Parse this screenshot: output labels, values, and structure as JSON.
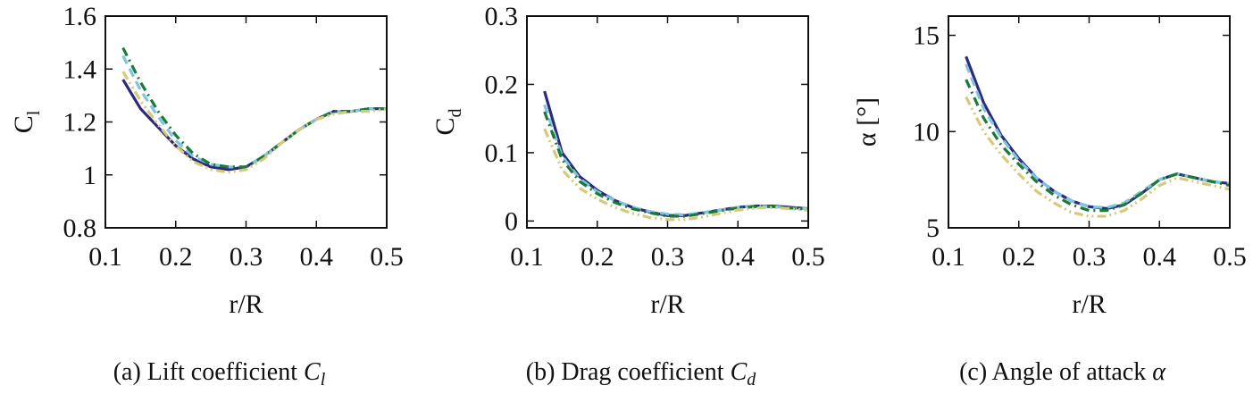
{
  "chart_data": [
    {
      "type": "line",
      "xlabel": "r/R",
      "ylabel": [
        "C",
        "l"
      ],
      "caption": [
        "(a) Lift coefficient ",
        "C",
        "l"
      ],
      "x": [
        0.125,
        0.15,
        0.175,
        0.2,
        0.225,
        0.25,
        0.275,
        0.3,
        0.325,
        0.35,
        0.375,
        0.4,
        0.425,
        0.45,
        0.475,
        0.5
      ],
      "xlim": [
        0.1,
        0.5
      ],
      "xticks": [
        0.1,
        0.2,
        0.3,
        0.4,
        0.5
      ],
      "ylim": [
        0.8,
        1.6
      ],
      "yticks": [
        0.8,
        1,
        1.2,
        1.4,
        1.6
      ],
      "series": [
        {
          "color": "#2d2a7a",
          "linestyle": "solid",
          "values": [
            1.36,
            1.25,
            1.18,
            1.11,
            1.06,
            1.03,
            1.02,
            1.03,
            1.07,
            1.12,
            1.17,
            1.21,
            1.24,
            1.24,
            1.25,
            1.25
          ]
        },
        {
          "color": "#7fc4e0",
          "linestyle": "dashed",
          "values": [
            1.45,
            1.32,
            1.22,
            1.13,
            1.07,
            1.04,
            1.03,
            1.03,
            1.07,
            1.12,
            1.17,
            1.21,
            1.24,
            1.24,
            1.25,
            1.25
          ]
        },
        {
          "color": "#1a7a3a",
          "linestyle": "dashdot",
          "values": [
            1.48,
            1.35,
            1.24,
            1.15,
            1.08,
            1.04,
            1.03,
            1.03,
            1.07,
            1.12,
            1.17,
            1.21,
            1.24,
            1.24,
            1.25,
            1.25
          ]
        },
        {
          "color": "#d6c97a",
          "linestyle": "dashdotdot",
          "values": [
            1.39,
            1.28,
            1.19,
            1.11,
            1.05,
            1.02,
            1.01,
            1.02,
            1.06,
            1.12,
            1.17,
            1.21,
            1.23,
            1.24,
            1.24,
            1.25
          ]
        }
      ]
    },
    {
      "type": "line",
      "xlabel": "r/R",
      "ylabel": [
        "C",
        "d"
      ],
      "caption": [
        "(b) Drag coefficient ",
        "C",
        "d"
      ],
      "x": [
        0.125,
        0.15,
        0.175,
        0.2,
        0.225,
        0.25,
        0.275,
        0.3,
        0.325,
        0.35,
        0.375,
        0.4,
        0.425,
        0.45,
        0.475,
        0.5
      ],
      "xlim": [
        0.1,
        0.5
      ],
      "xticks": [
        0.1,
        0.2,
        0.3,
        0.4,
        0.5
      ],
      "ylim": [
        -0.01,
        0.3
      ],
      "yticks": [
        0,
        0.1,
        0.2,
        0.3
      ],
      "series": [
        {
          "color": "#2d2a7a",
          "linestyle": "solid",
          "values": [
            0.19,
            0.1,
            0.065,
            0.045,
            0.03,
            0.02,
            0.013,
            0.008,
            0.008,
            0.012,
            0.016,
            0.02,
            0.022,
            0.022,
            0.02,
            0.018
          ]
        },
        {
          "color": "#7fc4e0",
          "linestyle": "dashed",
          "values": [
            0.17,
            0.095,
            0.062,
            0.043,
            0.03,
            0.02,
            0.014,
            0.01,
            0.009,
            0.012,
            0.016,
            0.02,
            0.022,
            0.021,
            0.019,
            0.018
          ]
        },
        {
          "color": "#1a7a3a",
          "linestyle": "dashdot",
          "values": [
            0.16,
            0.09,
            0.058,
            0.04,
            0.027,
            0.018,
            0.012,
            0.007,
            0.007,
            0.011,
            0.015,
            0.019,
            0.021,
            0.021,
            0.019,
            0.017
          ]
        },
        {
          "color": "#d6c97a",
          "linestyle": "dashdotdot",
          "values": [
            0.135,
            0.075,
            0.048,
            0.032,
            0.02,
            0.011,
            0.005,
            0.002,
            0.002,
            0.006,
            0.011,
            0.016,
            0.019,
            0.02,
            0.018,
            0.016
          ]
        }
      ]
    },
    {
      "type": "line",
      "xlabel": "r/R",
      "ylabel": "α [°]",
      "caption": [
        "(c) Angle of attack ",
        "α"
      ],
      "x": [
        0.125,
        0.15,
        0.175,
        0.2,
        0.225,
        0.25,
        0.275,
        0.3,
        0.325,
        0.35,
        0.375,
        0.4,
        0.425,
        0.45,
        0.475,
        0.5
      ],
      "xlim": [
        0.1,
        0.5
      ],
      "xticks": [
        0.1,
        0.2,
        0.3,
        0.4,
        0.5
      ],
      "ylim": [
        5,
        16
      ],
      "yticks": [
        5,
        10,
        15
      ],
      "series": [
        {
          "color": "#2d2a7a",
          "linestyle": "solid",
          "values": [
            13.9,
            11.5,
            9.8,
            8.6,
            7.6,
            6.9,
            6.4,
            6.1,
            6.0,
            6.2,
            6.8,
            7.5,
            7.8,
            7.6,
            7.4,
            7.3
          ]
        },
        {
          "color": "#7fc4e0",
          "linestyle": "dashed",
          "values": [
            13.5,
            11.2,
            9.7,
            8.5,
            7.6,
            6.9,
            6.4,
            6.1,
            6.05,
            6.3,
            6.9,
            7.5,
            7.8,
            7.6,
            7.4,
            7.3
          ]
        },
        {
          "color": "#1a7a3a",
          "linestyle": "dashdot",
          "values": [
            12.7,
            10.7,
            9.3,
            8.3,
            7.4,
            6.7,
            6.2,
            5.9,
            5.9,
            6.2,
            6.8,
            7.5,
            7.8,
            7.6,
            7.4,
            7.2
          ]
        },
        {
          "color": "#d6c97a",
          "linestyle": "dashdotdot",
          "values": [
            11.8,
            10.0,
            8.8,
            7.8,
            6.9,
            6.3,
            5.8,
            5.6,
            5.6,
            5.9,
            6.5,
            7.2,
            7.6,
            7.4,
            7.2,
            7.0
          ]
        }
      ]
    }
  ]
}
